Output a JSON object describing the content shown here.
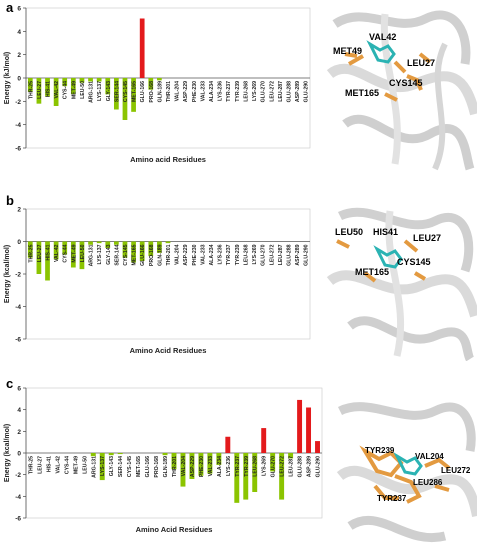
{
  "panels": [
    {
      "letter": "a",
      "mol_labels": [
        "VAL42",
        "MET49",
        "LEU27",
        "CYS145",
        "MET165"
      ]
    },
    {
      "letter": "b",
      "mol_labels": [
        "HIS41",
        "LEU50",
        "LEU27",
        "CYS145",
        "MET165"
      ]
    },
    {
      "letter": "c",
      "mol_labels": [
        "TYR239",
        "VAL204",
        "LEU272",
        "LEU286",
        "TYR237"
      ]
    }
  ],
  "chart_data": [
    {
      "type": "bar",
      "xlabel": "Amino acid Residues",
      "ylabel": "Energy (kJ/mol)",
      "ylim": [
        -6,
        6
      ],
      "yticks": [
        -6,
        -4,
        -2,
        0,
        2,
        4,
        6
      ],
      "categories": [
        "THR-25",
        "LEU-27",
        "HIS-41",
        "VAL-42",
        "CYS-44",
        "MET-49",
        "LEU-50",
        "ARG-131",
        "LYS-137",
        "GLY-143",
        "SER-144",
        "CYS-145",
        "MET-165",
        "GLU-166",
        "PRO-168",
        "GLN-189",
        "THR-201",
        "VAL-204",
        "ASP-229",
        "PHE-230",
        "VAL-233",
        "ALA-234",
        "LYS-236",
        "TYR-237",
        "TYR-239",
        "LEU-268",
        "LYS-269",
        "GLU-270",
        "LEU-272",
        "LEU-287",
        "GLU-288",
        "ASP-289",
        "GLU-290"
      ],
      "values": [
        -1.2,
        -2.2,
        -1.6,
        -2.4,
        -0.7,
        -1.4,
        -0.4,
        -0.3,
        -0.3,
        -1.4,
        -2.7,
        -3.6,
        -2.9,
        5.1,
        -1.0,
        -0.2,
        0,
        0,
        0,
        0,
        0,
        0,
        0,
        0,
        0,
        0,
        0,
        0,
        0,
        0,
        0,
        0,
        0
      ],
      "colors": {
        "negative": "#8bc400",
        "positive": "#e31a1c"
      }
    },
    {
      "type": "bar",
      "xlabel": "Amino Acid Residues",
      "ylabel": "Energy (kcal/mol)",
      "ylim": [
        -6,
        2
      ],
      "yticks": [
        -6,
        -4,
        -2,
        0,
        2
      ],
      "categories": [
        "THR-25",
        "LEU-27",
        "HIS-41",
        "VAL-42",
        "CYS-44",
        "MET-49",
        "LEU-50",
        "ARG-131",
        "LYS-137",
        "GLY-143",
        "SER-144",
        "CYS-145",
        "MET-165",
        "GLU-166",
        "PRO-168",
        "GLN-189",
        "THR-201",
        "VAL-204",
        "ASP-229",
        "PHE-230",
        "VAL-233",
        "ALA-234",
        "LYS-236",
        "TYR-237",
        "TYR-239",
        "LEU-268",
        "LYS-269",
        "GLU-270",
        "LEU-272",
        "LEU-287",
        "GLU-288",
        "ASP-289",
        "GLU-290"
      ],
      "values": [
        -1.0,
        -2.0,
        -2.4,
        -1.1,
        -0.8,
        -1.6,
        -1.7,
        -0.2,
        -0.1,
        -0.4,
        -0.2,
        -1.0,
        -1.3,
        -1.2,
        -0.9,
        -0.7,
        -0.1,
        0,
        0,
        0,
        0,
        0,
        0,
        0,
        0,
        0,
        0,
        0,
        0,
        0,
        0,
        0,
        0
      ],
      "colors": {
        "negative": "#8bc400",
        "positive": "#e31a1c"
      }
    },
    {
      "type": "bar",
      "xlabel": "Amino Acid Residues",
      "ylabel": "Energy (kcal/mol)",
      "ylim": [
        -6,
        6
      ],
      "yticks": [
        -6,
        -4,
        -2,
        0,
        2,
        4,
        6
      ],
      "categories": [
        "THR-25",
        "LEU-27",
        "HIS-41",
        "VAL-42",
        "CYS-44",
        "MET-49",
        "LEU-50",
        "ARG-131",
        "LYS-137",
        "GLY-143",
        "SER-144",
        "CYS-145",
        "MET-165",
        "GLU-166",
        "PRO-168",
        "GLN-189",
        "THR-201",
        "VAL-204",
        "ASP-229",
        "PHE-230",
        "VAL-233",
        "ALA-234",
        "LYS-236",
        "TYR-237",
        "TYR-239",
        "LEU-268",
        "LYS-269",
        "GLU-270",
        "LEU-272",
        "LEU-287",
        "GLU-288",
        "ASP-289",
        "GLU-290"
      ],
      "values": [
        0,
        0,
        0,
        0,
        0,
        0,
        0,
        -0.3,
        -2.5,
        -0.2,
        -0.1,
        0,
        0,
        0,
        0,
        -0.2,
        -1.5,
        -3.1,
        -2.4,
        -2.1,
        -1.9,
        -1.1,
        1.5,
        -4.6,
        -4.3,
        -3.6,
        2.3,
        -1.7,
        -4.3,
        -0.5,
        4.9,
        4.2,
        1.1
      ],
      "colors": {
        "negative": "#8bc400",
        "positive": "#e31a1c"
      }
    }
  ]
}
